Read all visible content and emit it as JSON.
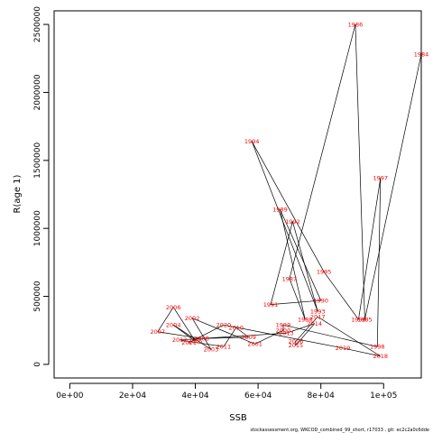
{
  "chart_data": {
    "type": "scatter",
    "xlabel": "SSB",
    "ylabel": "R(age 1)",
    "xlim": [
      -5000,
      112000
    ],
    "ylim": [
      -100000,
      2600000
    ],
    "x_ticks": [
      0,
      20000,
      40000,
      60000,
      80000,
      100000
    ],
    "x_tick_labels": [
      "0e+00",
      "2e+04",
      "4e+04",
      "6e+04",
      "8e+04",
      "1e+05"
    ],
    "y_ticks": [
      0,
      500000,
      1000000,
      1500000,
      2000000,
      2500000
    ],
    "y_tick_labels": [
      "0",
      "500000",
      "1000000",
      "1500000",
      "2000000",
      "2500000"
    ],
    "grid": false,
    "connected": true,
    "points": [
      {
        "label": "1984",
        "x": 112000,
        "y": 2280000
      },
      {
        "label": "1985",
        "x": 94000,
        "y": 330000
      },
      {
        "label": "1986",
        "x": 91000,
        "y": 2500000
      },
      {
        "label": "1987",
        "x": 70000,
        "y": 630000
      },
      {
        "label": "1988",
        "x": 75000,
        "y": 330000
      },
      {
        "label": "1989",
        "x": 67000,
        "y": 1140000
      },
      {
        "label": "1990",
        "x": 80000,
        "y": 470000
      },
      {
        "label": "1991",
        "x": 64000,
        "y": 440000
      },
      {
        "label": "1992",
        "x": 71000,
        "y": 1050000
      },
      {
        "label": "1993",
        "x": 79000,
        "y": 390000
      },
      {
        "label": "1994",
        "x": 58000,
        "y": 1640000
      },
      {
        "label": "1995",
        "x": 81000,
        "y": 680000
      },
      {
        "label": "1996",
        "x": 92000,
        "y": 330000
      },
      {
        "label": "1997",
        "x": 99000,
        "y": 1370000
      },
      {
        "label": "1998",
        "x": 98000,
        "y": 130000
      },
      {
        "label": "1999",
        "x": 68000,
        "y": 290000
      },
      {
        "label": "2000",
        "x": 68000,
        "y": 250000
      },
      {
        "label": "2001",
        "x": 59000,
        "y": 150000
      },
      {
        "label": "2002",
        "x": 39000,
        "y": 340000
      },
      {
        "label": "2003",
        "x": 45000,
        "y": 110000
      },
      {
        "label": "2004",
        "x": 33000,
        "y": 290000
      },
      {
        "label": "2005",
        "x": 40000,
        "y": 170000
      },
      {
        "label": "2006",
        "x": 33000,
        "y": 420000
      },
      {
        "label": "2007",
        "x": 28000,
        "y": 240000
      },
      {
        "label": "2008",
        "x": 42000,
        "y": 190000
      },
      {
        "label": "2009",
        "x": 57000,
        "y": 200000
      },
      {
        "label": "2010",
        "x": 53000,
        "y": 270000
      },
      {
        "label": "2011",
        "x": 49000,
        "y": 130000
      },
      {
        "label": "2012",
        "x": 35000,
        "y": 180000
      },
      {
        "label": "2013",
        "x": 69000,
        "y": 230000
      },
      {
        "label": "2014",
        "x": 78000,
        "y": 300000
      },
      {
        "label": "2015",
        "x": 72000,
        "y": 140000
      },
      {
        "label": "2016",
        "x": 72000,
        "y": 170000
      },
      {
        "label": "2017",
        "x": 79000,
        "y": 350000
      },
      {
        "label": "2018",
        "x": 99000,
        "y": 60000
      },
      {
        "label": "2019",
        "x": 87000,
        "y": 120000
      },
      {
        "label": "2020",
        "x": 49000,
        "y": 290000
      },
      {
        "label": "2021",
        "x": 38000,
        "y": 160000
      }
    ]
  },
  "footnote": "stockassessment.org, WKCOD_combined_99_short, r17033 , git: ec2c2a0c6dde"
}
